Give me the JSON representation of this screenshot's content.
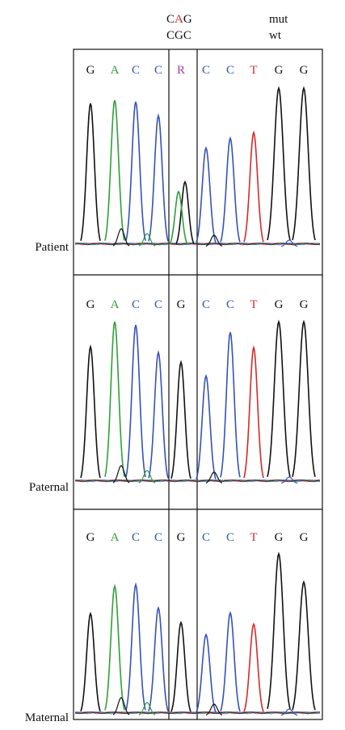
{
  "header": {
    "codon_mut_prefix": "C",
    "codon_mut_mid": "A",
    "codon_mut_suffix": "G",
    "codon_wt": "CGC",
    "mut_label": "mut",
    "wt_label": "wt",
    "mut_mid_color": "#d42a2a"
  },
  "base_colors": {
    "G": "#111111",
    "A": "#2f9e3a",
    "C": "#3552b8",
    "T": "#d42a2a",
    "R": "#a93bb5"
  },
  "panels": [
    {
      "label": "Patient",
      "bases": [
        "G",
        "A",
        "C",
        "C",
        "R",
        "C",
        "C",
        "T",
        "G",
        "G"
      ]
    },
    {
      "label": "Paternal",
      "bases": [
        "G",
        "A",
        "C",
        "C",
        "G",
        "C",
        "C",
        "T",
        "G",
        "G"
      ]
    },
    {
      "label": "Maternal",
      "bases": [
        "G",
        "A",
        "C",
        "C",
        "G",
        "C",
        "C",
        "T",
        "G",
        "G"
      ]
    }
  ]
}
